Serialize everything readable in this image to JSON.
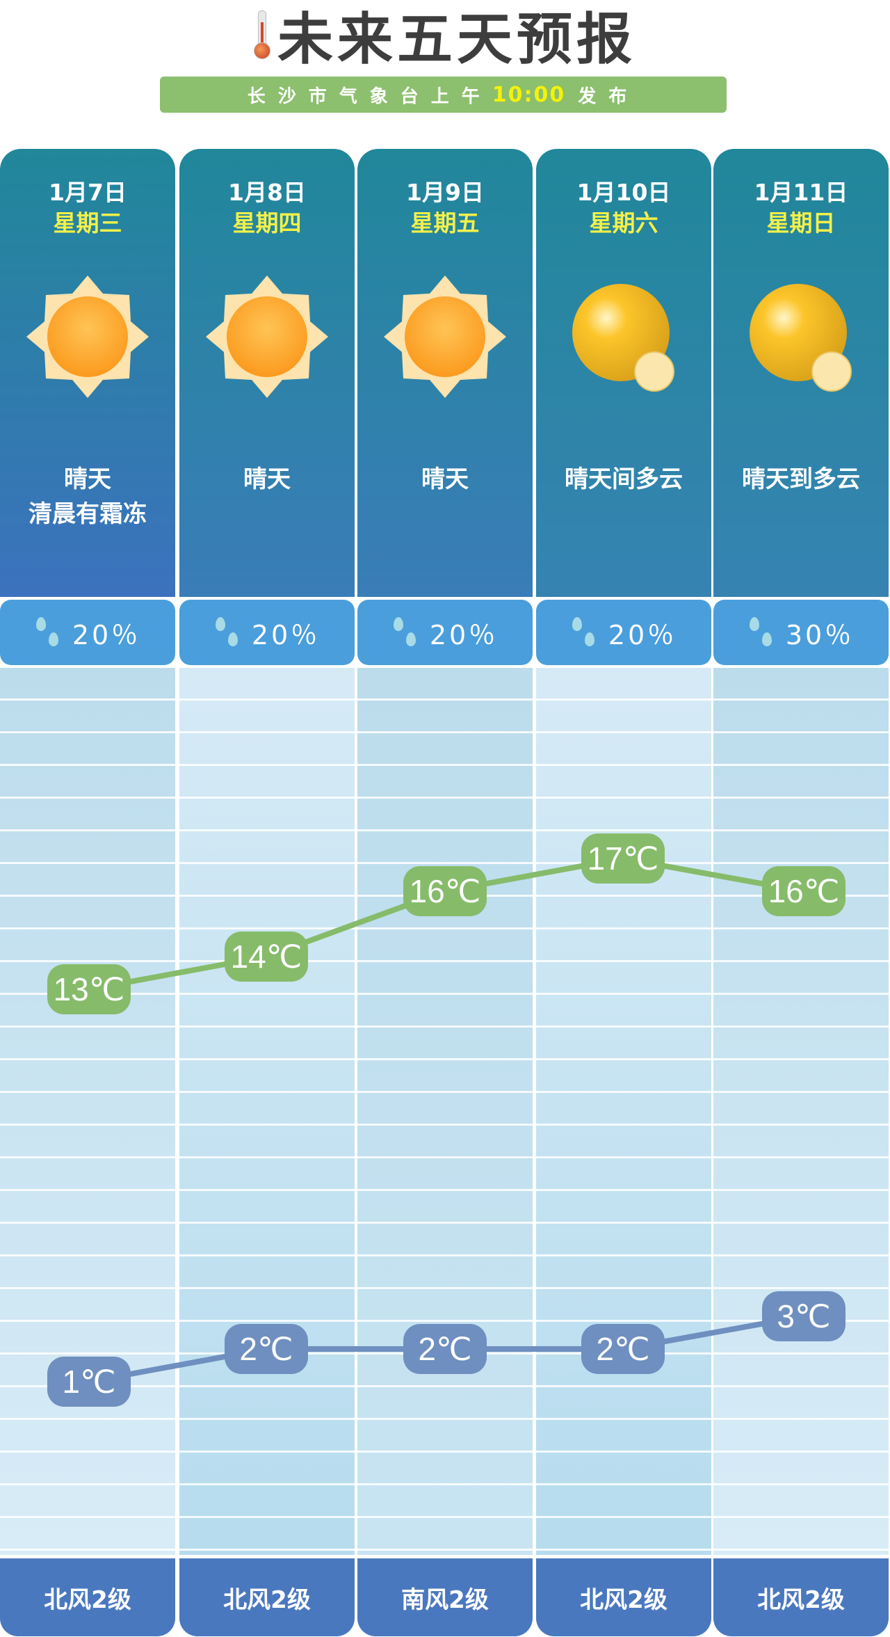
{
  "header": {
    "title": "未来五天预报",
    "icon": "thermometer-icon",
    "subtitle_prefix": "长沙市气象台上午",
    "subtitle_time": "10:00",
    "subtitle_suffix": "发布"
  },
  "days": [
    {
      "date": "1月7日",
      "weekday": "星期三",
      "icon": "sun-icon",
      "desc1": "晴天",
      "desc2": "清晨有霜冻",
      "rain": "20％",
      "high": 13,
      "high_label": "13℃",
      "low": 1,
      "low_label": "1℃",
      "wind": "北风2级"
    },
    {
      "date": "1月8日",
      "weekday": "星期四",
      "icon": "sun-icon",
      "desc1": "晴天",
      "desc2": "",
      "rain": "20％",
      "high": 14,
      "high_label": "14℃",
      "low": 2,
      "low_label": "2℃",
      "wind": "北风2级"
    },
    {
      "date": "1月9日",
      "weekday": "星期五",
      "icon": "sun-icon",
      "desc1": "晴天",
      "desc2": "",
      "rain": "20％",
      "high": 16,
      "high_label": "16℃",
      "low": 2,
      "low_label": "2℃",
      "wind": "南风2级"
    },
    {
      "date": "1月10日",
      "weekday": "星期六",
      "icon": "sunny-cloudy-icon",
      "desc1": "晴天间多云",
      "desc2": "",
      "rain": "20％",
      "high": 17,
      "high_label": "17℃",
      "low": 2,
      "low_label": "2℃",
      "wind": "北风2级"
    },
    {
      "date": "1月11日",
      "weekday": "星期日",
      "icon": "sunny-cloudy-icon",
      "desc1": "晴天到多云",
      "desc2": "",
      "rain": "30％",
      "high": 16,
      "high_label": "16℃",
      "low": 3,
      "low_label": "3℃",
      "wind": "北风2级"
    }
  ],
  "colors": {
    "high": "#86bb6a",
    "low": "#6e8fbf",
    "card_top": "#21879a",
    "rain_box": "#4a9edb",
    "wind_box": "#4a78bf",
    "accent_yellow": "#f3f04a"
  }
}
